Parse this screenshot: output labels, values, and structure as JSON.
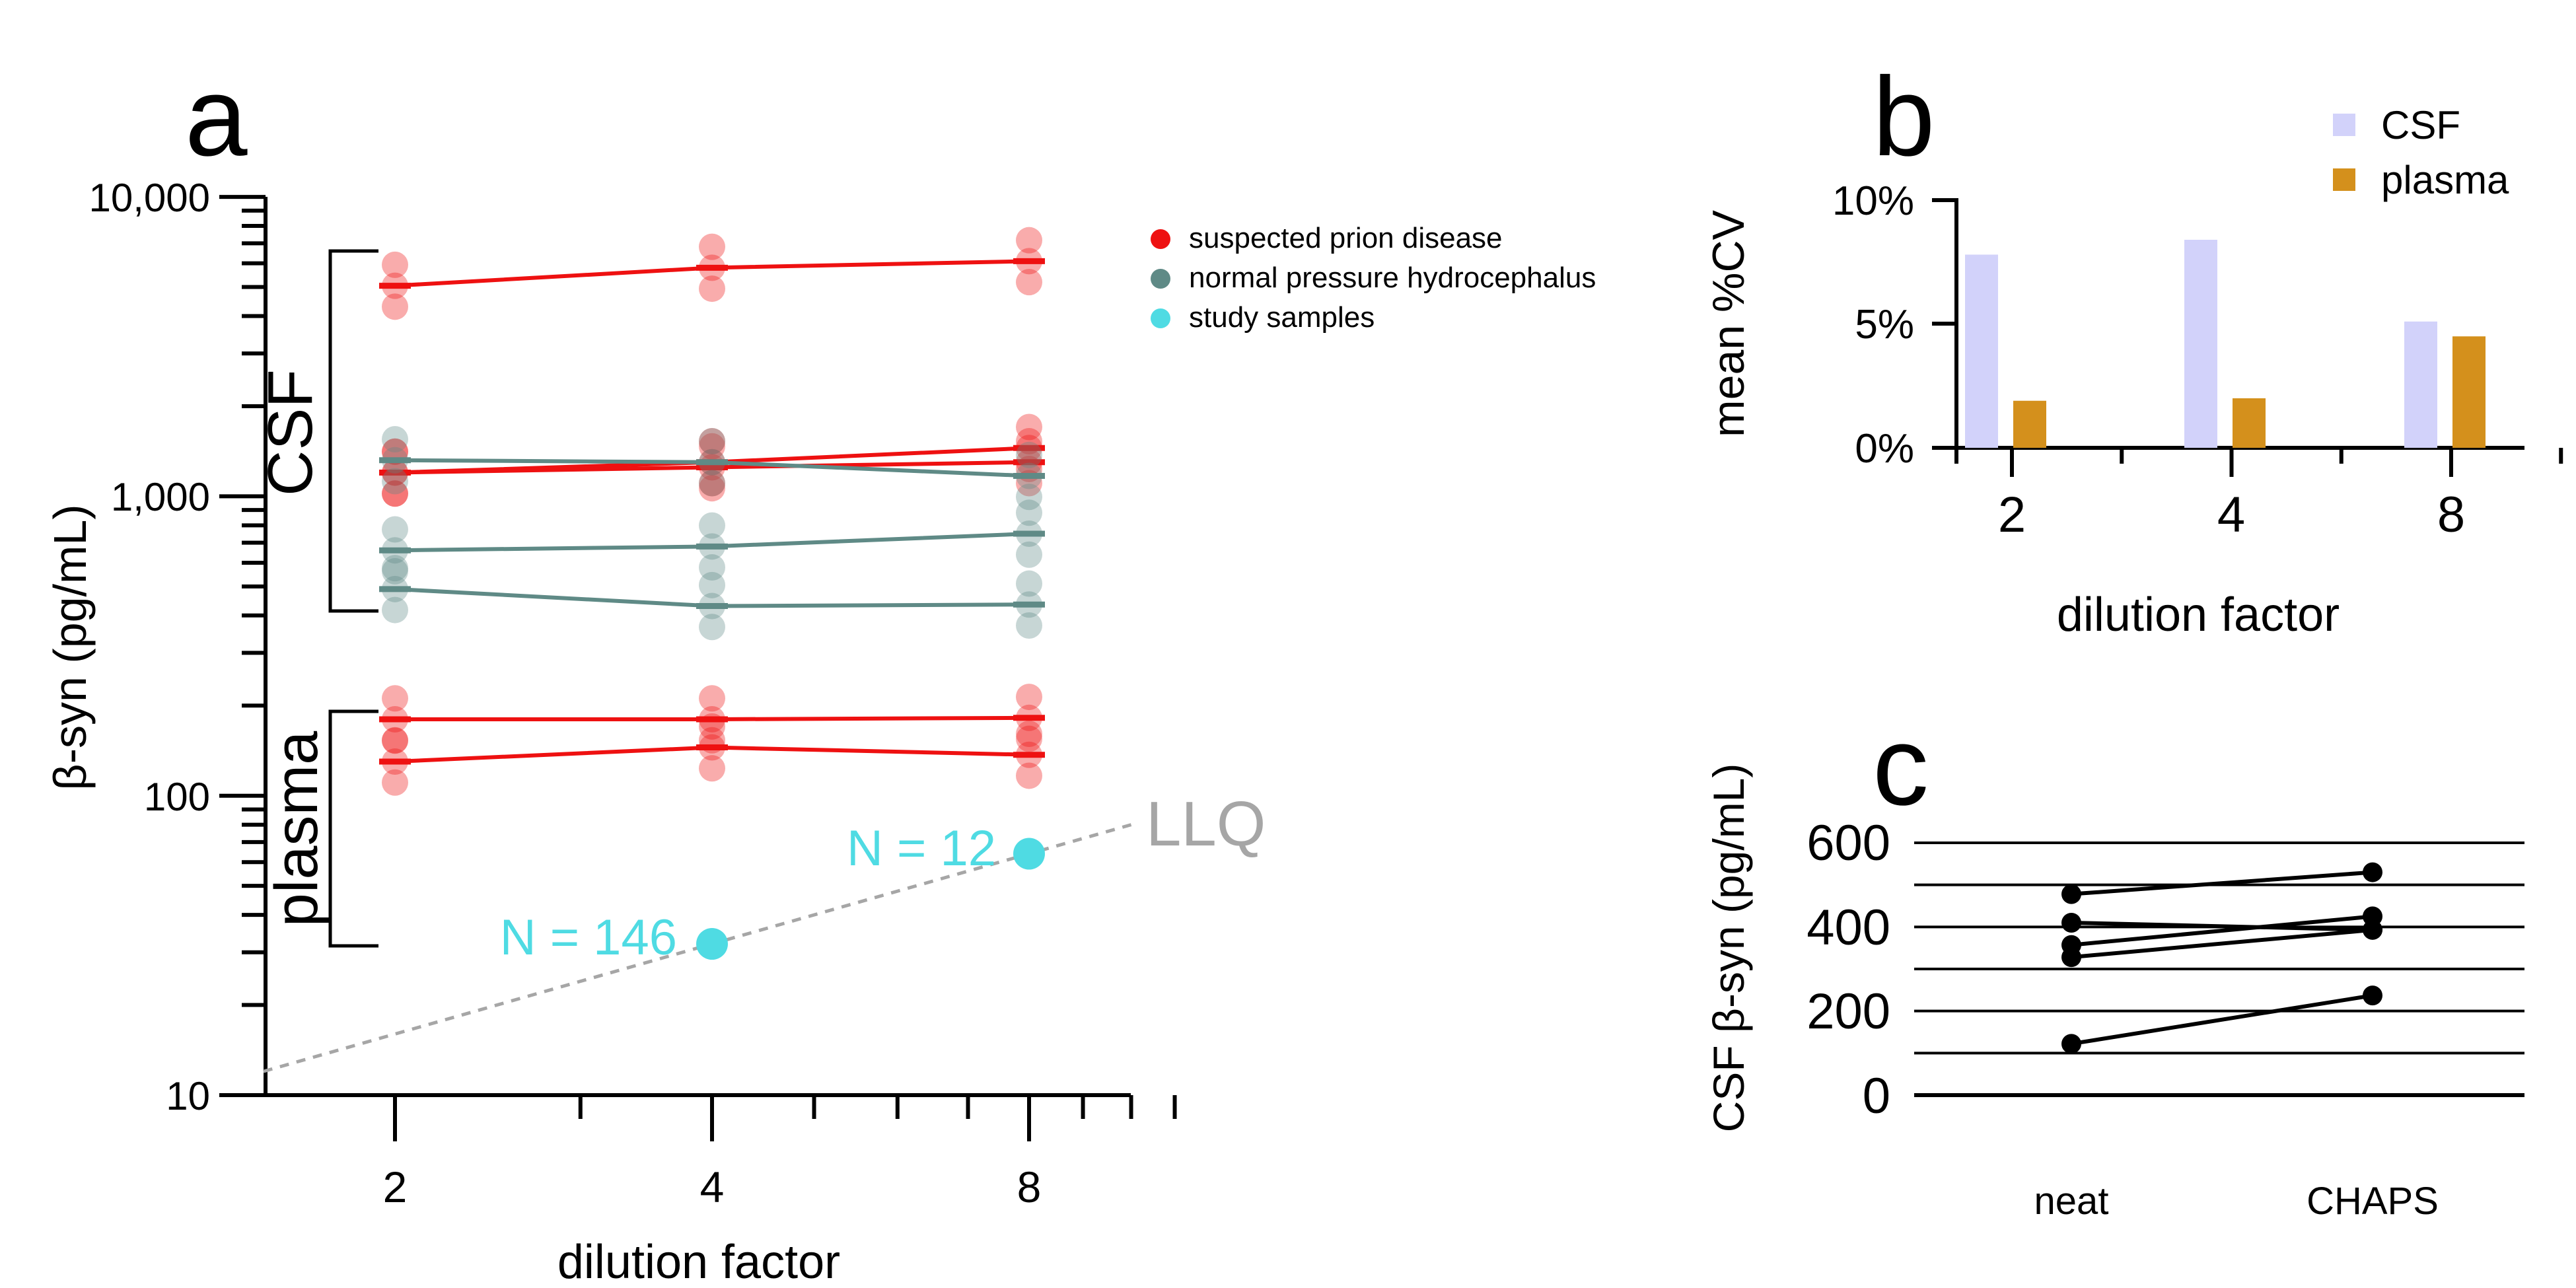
{
  "panels": {
    "a": {
      "letter": "a"
    },
    "b": {
      "letter": "b"
    },
    "c": {
      "letter": "c"
    }
  },
  "colors": {
    "prion": "#ee1111",
    "nph": "#5f8a86",
    "study": "#4fdbe3",
    "llq": "#a6a6a6",
    "csf_bar": "#d2d2fa",
    "plasma_bar": "#d4901c",
    "axis": "#000000"
  },
  "chart_data": [
    {
      "panel": "a",
      "type": "line",
      "scale": "log",
      "xlabel": "dilution factor",
      "ylabel": "β-syn (pg/mL)",
      "x_ticks": [
        "2",
        "4",
        "8"
      ],
      "y_ticks": [
        "10",
        "100",
        "1,000",
        "10,000"
      ],
      "xlim": [
        1.5,
        11
      ],
      "ylim": [
        10,
        10000
      ],
      "groups": [
        {
          "label": "CSF"
        },
        {
          "label": "plasma"
        }
      ],
      "legend": [
        {
          "label": "suspected prion disease",
          "color_key": "prion"
        },
        {
          "label": "normal pressure hydrocephalus",
          "color_key": "nph"
        },
        {
          "label": "study samples",
          "color_key": "study"
        }
      ],
      "legend_position": "top-right",
      "series": [
        {
          "group": "prion",
          "x": [
            2,
            4,
            8
          ],
          "values": [
            5050,
            5800,
            6100
          ]
        },
        {
          "group": "prion",
          "x": [
            2,
            4,
            8
          ],
          "values": [
            1200,
            1300,
            1450
          ]
        },
        {
          "group": "prion",
          "x": [
            2,
            4,
            8
          ],
          "values": [
            1200,
            1250,
            1300
          ]
        },
        {
          "group": "nph",
          "x": [
            2,
            4,
            8
          ],
          "values": [
            1320,
            1300,
            1170
          ]
        },
        {
          "group": "nph",
          "x": [
            2,
            4,
            8
          ],
          "values": [
            660,
            680,
            750
          ]
        },
        {
          "group": "nph",
          "x": [
            2,
            4,
            8
          ],
          "values": [
            490,
            430,
            435
          ]
        },
        {
          "group": "prion",
          "x": [
            2,
            4,
            8
          ],
          "values": [
            180,
            180,
            182
          ]
        },
        {
          "group": "prion",
          "x": [
            2,
            4,
            8
          ],
          "values": [
            130,
            145,
            137
          ]
        }
      ],
      "study_samples": [
        {
          "x": 4,
          "value": 32,
          "label": "N = 146"
        },
        {
          "x": 8,
          "value": 64,
          "label": "N = 12"
        }
      ],
      "llq": {
        "label": "LLQ",
        "x": [
          1.5,
          10
        ],
        "values": [
          12,
          80
        ]
      }
    },
    {
      "panel": "b",
      "type": "bar",
      "categories": [
        "2",
        "4",
        "8"
      ],
      "xlabel": "dilution factor",
      "ylabel": "mean %CV",
      "y_ticks": [
        "0%",
        "5%",
        "10%"
      ],
      "ylim": [
        0,
        10
      ],
      "legend_position": "top-right",
      "series": [
        {
          "name": "CSF",
          "values": [
            7.8,
            8.4,
            5.1
          ],
          "color_key": "csf_bar"
        },
        {
          "name": "plasma",
          "values": [
            1.9,
            2.0,
            4.5
          ],
          "color_key": "plasma_bar"
        }
      ]
    },
    {
      "panel": "c",
      "type": "line",
      "categories": [
        "neat",
        "CHAPS"
      ],
      "ylabel": "CSF β-syn (pg/mL)",
      "y_ticks": [
        "0",
        "200",
        "400",
        "600"
      ],
      "ylim": [
        0,
        600
      ],
      "series": [
        {
          "values": [
            478,
            530
          ]
        },
        {
          "values": [
            410,
            393
          ]
        },
        {
          "values": [
            357,
            425
          ]
        },
        {
          "values": [
            328,
            393
          ]
        },
        {
          "values": [
            122,
            237
          ]
        }
      ]
    }
  ]
}
